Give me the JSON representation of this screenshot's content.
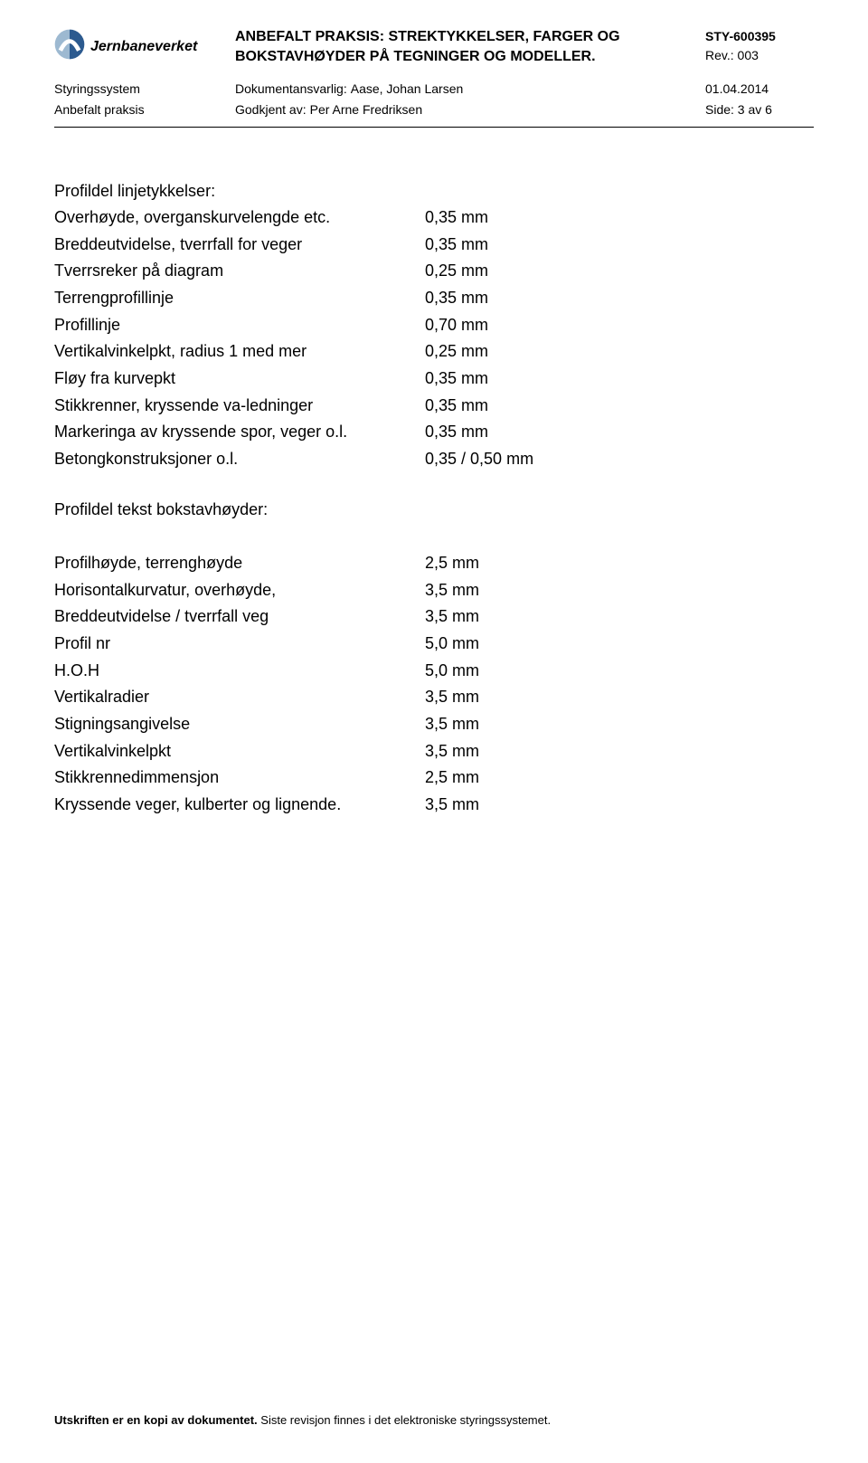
{
  "header": {
    "brand": "Jernbaneverket",
    "title_l1": "ANBEFALT PRAKSIS: STREKTYKKELSER, FARGER OG",
    "title_l2": "BOKSTAVHØYDER PÅ TEGNINGER OG MODELLER.",
    "doc_id": "STY-600395",
    "rev": "Rev.: 003"
  },
  "meta": {
    "row1_left": "Styringssystem",
    "row1_mid_label": "Dokumentansvarlig:",
    "row1_mid_value": "Aase, Johan Larsen",
    "row1_right": "01.04.2014",
    "row2_left": "Anbefalt praksis",
    "row2_mid_label": "Godkjent av:",
    "row2_mid_value": "Per Arne Fredriksen",
    "row2_right": "Side: 3 av 6"
  },
  "section1": {
    "title": "Profildel linjetykkelser:",
    "rows": [
      {
        "label": "Overhøyde, overganskurvelengde etc.",
        "value": "0,35 mm"
      },
      {
        "label": "Breddeutvidelse, tverrfall for veger",
        "value": "0,35 mm"
      },
      {
        "label": "Tverrsreker på diagram",
        "value": "0,25 mm"
      },
      {
        "label": "Terrengprofillinje",
        "value": "0,35 mm"
      },
      {
        "label": "Profillinje",
        "value": "0,70 mm"
      },
      {
        "label": "Vertikalvinkelpkt, radius 1 med mer",
        "value": "0,25 mm"
      },
      {
        "label": "Fløy fra kurvepkt",
        "value": "0,35 mm"
      },
      {
        "label": "Stikkrenner, kryssende va-ledninger",
        "value": "0,35 mm"
      },
      {
        "label": "Markeringa av kryssende spor, veger o.l.",
        "value": "0,35 mm"
      },
      {
        "label": "Betongkonstruksjoner o.l.",
        "value": "0,35 / 0,50 mm"
      }
    ]
  },
  "section2": {
    "title": "Profildel tekst bokstavhøyder:",
    "rows": [
      {
        "label": "Profilhøyde, terrenghøyde",
        "value": "2,5 mm"
      },
      {
        "label": "Horisontalkurvatur, overhøyde,",
        "value": "3,5 mm"
      },
      {
        "label": "Breddeutvidelse / tverrfall veg",
        "value": "3,5 mm"
      },
      {
        "label": "Profil nr",
        "value": "5,0 mm"
      },
      {
        "label": "H.O.H",
        "value": "5,0 mm"
      },
      {
        "label": "Vertikalradier",
        "value": "3,5 mm"
      },
      {
        "label": "Stigningsangivelse",
        "value": "3,5 mm"
      },
      {
        "label": "Vertikalvinkelpkt",
        "value": "3,5 mm"
      },
      {
        "label": "Stikkrennedimmensjon",
        "value": "2,5 mm"
      },
      {
        "label": "Kryssende veger, kulberter og lignende.",
        "value": "3,5 mm"
      }
    ]
  },
  "footer": {
    "bold": "Utskriften er en kopi av dokumentet.",
    "rest": " Siste revisjon finnes i det elektroniske styringssystemet."
  },
  "colors": {
    "logo_primary": "#2c5a8f",
    "logo_light": "#9db9d1",
    "text": "#000000",
    "bg": "#ffffff"
  }
}
